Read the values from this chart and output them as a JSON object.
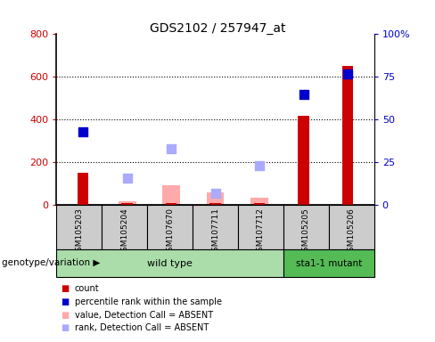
{
  "title": "GDS2102 / 257947_at",
  "samples": [
    "GSM105203",
    "GSM105204",
    "GSM107670",
    "GSM107711",
    "GSM107712",
    "GSM105205",
    "GSM105206"
  ],
  "bar_values_red": [
    150,
    10,
    10,
    10,
    10,
    420,
    650
  ],
  "bar_absent_pink": [
    null,
    20,
    95,
    60,
    35,
    null,
    null
  ],
  "scatter_blue_pct": [
    43,
    null,
    null,
    null,
    null,
    65,
    77
  ],
  "scatter_blue_absent_pct": [
    null,
    16,
    33,
    7,
    23,
    null,
    null
  ],
  "ylim_left": [
    0,
    800
  ],
  "ylim_right": [
    0,
    100
  ],
  "yticks_left": [
    0,
    200,
    400,
    600,
    800
  ],
  "ytick_labels_left": [
    "0",
    "200",
    "400",
    "600",
    "800"
  ],
  "yticks_right": [
    0,
    25,
    50,
    75,
    100
  ],
  "ytick_labels_right": [
    "0",
    "25",
    "50",
    "75",
    "100%"
  ],
  "left_tick_color": "#cc0000",
  "right_tick_color": "#0000cc",
  "wild_type_label": "wild type",
  "mutant_label": "sta1-1 mutant",
  "genotype_label": "genotype/variation",
  "bar_color_red": "#cc0000",
  "bar_color_pink": "#ffaaaa",
  "scatter_color_blue": "#0000cc",
  "scatter_color_blue_absent": "#aaaaff",
  "sample_bg_color": "#cccccc",
  "wild_type_bg": "#aaddaa",
  "mutant_bg": "#55bb55",
  "legend_items": [
    "count",
    "percentile rank within the sample",
    "value, Detection Call = ABSENT",
    "rank, Detection Call = ABSENT"
  ],
  "legend_colors": [
    "#cc0000",
    "#0000cc",
    "#ffaaaa",
    "#aaaaff"
  ]
}
